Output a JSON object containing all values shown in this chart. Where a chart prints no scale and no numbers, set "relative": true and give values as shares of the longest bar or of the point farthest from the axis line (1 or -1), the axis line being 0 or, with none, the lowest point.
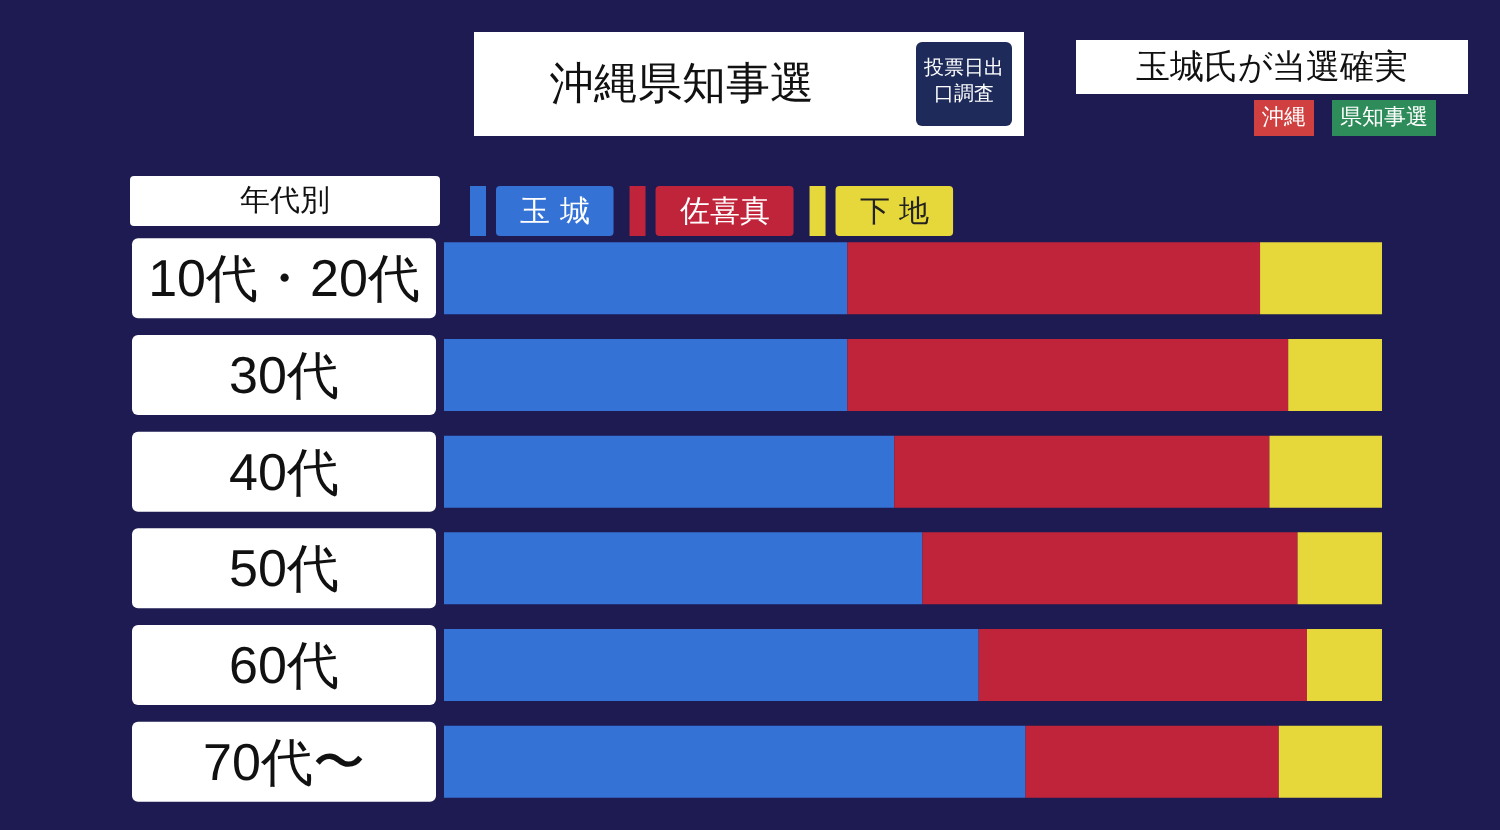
{
  "chart_data": {
    "type": "bar",
    "orientation": "horizontal",
    "stacked": true,
    "relative": true,
    "title": "沖縄県知事選",
    "legend_title": "年代別",
    "legend": "top left",
    "annotations": [
      "投票日出口調査",
      "玉城氏が当選確実",
      "沖縄",
      "県知事選"
    ],
    "categories": [
      "10代・20代",
      "30代",
      "40代",
      "50代",
      "60代",
      "70代〜"
    ],
    "series": [
      {
        "name": "玉 城",
        "color": "#3572d6",
        "values": [
          0.43,
          0.43,
          0.48,
          0.51,
          0.57,
          0.62
        ]
      },
      {
        "name": "佐喜真",
        "color": "#c0243a",
        "values": [
          0.44,
          0.47,
          0.4,
          0.4,
          0.35,
          0.27
        ]
      },
      {
        "name": "下 地",
        "color": "#e6d83a",
        "values": [
          0.13,
          0.1,
          0.12,
          0.09,
          0.08,
          0.11
        ]
      }
    ]
  }
}
